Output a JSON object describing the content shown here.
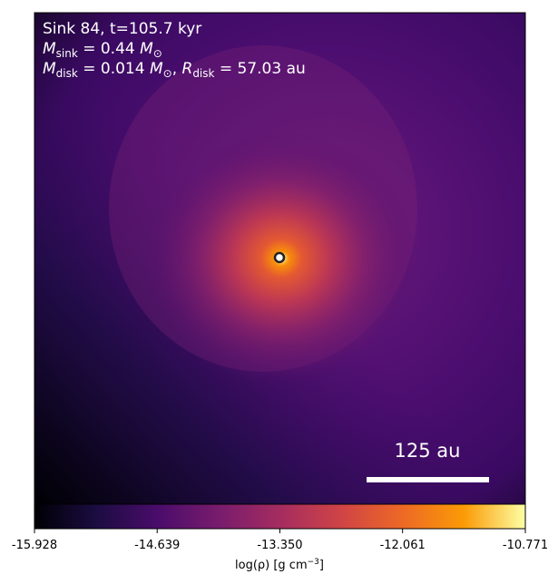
{
  "chart_data": {
    "type": "density-map",
    "title": "Sink 84, t=105.7 kyr",
    "sink_mass_line": [
      "M",
      "sink",
      " = 0.44 ",
      "M",
      "⊙"
    ],
    "disk_line": [
      "M",
      "disk",
      " = 0.014 ",
      "M",
      "⊙",
      ", ",
      "R",
      "disk",
      " = 57.03 au"
    ],
    "scale_bar_label": "125 au",
    "colorbar": {
      "label": [
        "log(ρ) [g cm",
        "−3",
        "]"
      ],
      "lim": [
        -15.928,
        -10.771
      ],
      "ticks": [
        -15.928,
        -14.639,
        {
          "value": -13.35,
          "label": "-13.350"
        },
        -12.061,
        -10.771
      ]
    }
  }
}
